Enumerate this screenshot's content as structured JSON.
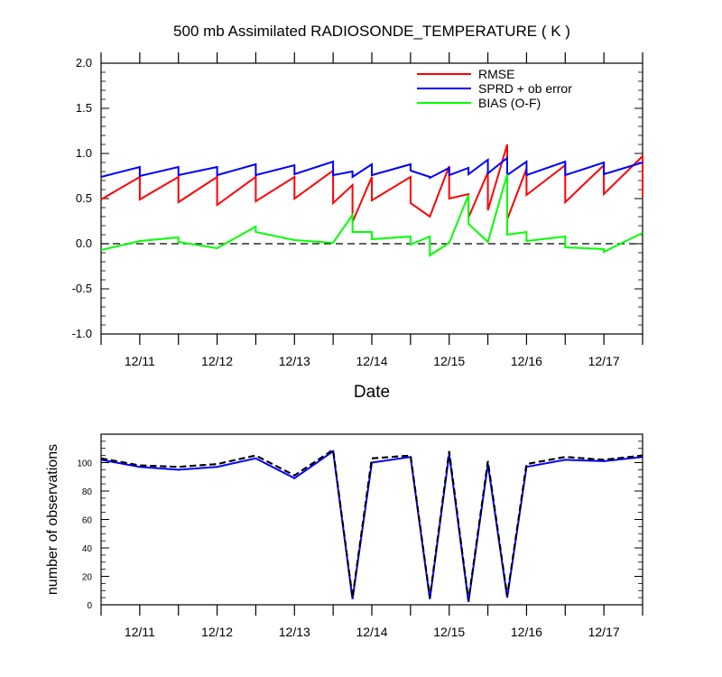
{
  "colors": {
    "rmse": "#ff0000",
    "sprd": "#0000ff",
    "bias": "#00ff00",
    "zero_line": "#000000",
    "obs_dashed": "#000000",
    "obs_solid": "#0000ff"
  },
  "chart_data": [
    {
      "type": "line",
      "title": "500 mb Assimilated RADIOSONDE_TEMPERATURE ( K )",
      "xlabel": "Date",
      "ylabel": "",
      "xlim": [
        10.5,
        17.5
      ],
      "ylim": [
        -1.0,
        2.0
      ],
      "yticks": [
        -1.0,
        -0.5,
        0.0,
        0.5,
        1.0,
        1.5,
        2.0
      ],
      "ytick_labels": [
        "-1.0",
        "-0.5",
        "0.0",
        "0.5",
        "1.0",
        "1.5",
        "2.0"
      ],
      "xticks": [
        11,
        12,
        13,
        14,
        15,
        16,
        17
      ],
      "xtick_labels": [
        "12/11",
        "12/12",
        "12/13",
        "12/14",
        "12/15",
        "12/16",
        "12/17"
      ],
      "zero_line": "dashed",
      "grid": false,
      "legend_position": "top-right",
      "series": [
        {
          "name": "RMSE",
          "color_key": "rmse",
          "points": [
            [
              10.5,
              0.49
            ],
            [
              11.0,
              0.74
            ],
            [
              11.0,
              0.49
            ],
            [
              11.5,
              0.74
            ],
            [
              11.5,
              0.46
            ],
            [
              12.0,
              0.74
            ],
            [
              12.0,
              0.43
            ],
            [
              12.5,
              0.74
            ],
            [
              12.5,
              0.47
            ],
            [
              13.0,
              0.74
            ],
            [
              13.0,
              0.5
            ],
            [
              13.5,
              0.81
            ],
            [
              13.5,
              0.45
            ],
            [
              13.75,
              0.65
            ],
            [
              13.75,
              0.24
            ],
            [
              14.0,
              0.74
            ],
            [
              14.0,
              0.48
            ],
            [
              14.5,
              0.74
            ],
            [
              14.5,
              0.45
            ],
            [
              14.75,
              0.3
            ],
            [
              14.75,
              0.3
            ],
            [
              15.0,
              0.86
            ],
            [
              15.0,
              0.5
            ],
            [
              15.25,
              0.55
            ],
            [
              15.25,
              0.29
            ],
            [
              15.5,
              0.79
            ],
            [
              15.5,
              0.37
            ],
            [
              15.75,
              1.1
            ],
            [
              15.75,
              0.27
            ],
            [
              16.0,
              0.83
            ],
            [
              16.0,
              0.54
            ],
            [
              16.5,
              0.87
            ],
            [
              16.5,
              0.46
            ],
            [
              17.0,
              0.87
            ],
            [
              17.0,
              0.55
            ],
            [
              17.5,
              0.97
            ],
            [
              17.5,
              0.52
            ]
          ]
        },
        {
          "name": "SPRD + ob error",
          "color_key": "sprd",
          "points": [
            [
              10.5,
              0.74
            ],
            [
              11.0,
              0.85
            ],
            [
              11.0,
              0.75
            ],
            [
              11.5,
              0.85
            ],
            [
              11.5,
              0.76
            ],
            [
              12.0,
              0.85
            ],
            [
              12.0,
              0.76
            ],
            [
              12.5,
              0.88
            ],
            [
              12.5,
              0.76
            ],
            [
              13.0,
              0.87
            ],
            [
              13.0,
              0.77
            ],
            [
              13.5,
              0.91
            ],
            [
              13.5,
              0.76
            ],
            [
              13.75,
              0.8
            ],
            [
              13.75,
              0.74
            ],
            [
              14.0,
              0.88
            ],
            [
              14.0,
              0.76
            ],
            [
              14.5,
              0.88
            ],
            [
              14.5,
              0.81
            ],
            [
              14.75,
              0.74
            ],
            [
              14.75,
              0.73
            ],
            [
              15.0,
              0.84
            ],
            [
              15.0,
              0.76
            ],
            [
              15.25,
              0.84
            ],
            [
              15.25,
              0.77
            ],
            [
              15.5,
              0.93
            ],
            [
              15.5,
              0.78
            ],
            [
              15.75,
              0.95
            ],
            [
              15.75,
              0.76
            ],
            [
              16.0,
              0.91
            ],
            [
              16.0,
              0.76
            ],
            [
              16.5,
              0.91
            ],
            [
              16.5,
              0.76
            ],
            [
              17.0,
              0.9
            ],
            [
              17.0,
              0.77
            ],
            [
              17.5,
              0.9
            ],
            [
              17.5,
              0.89
            ]
          ]
        },
        {
          "name": "BIAS (O-F)",
          "color_key": "bias",
          "points": [
            [
              10.5,
              -0.07
            ],
            [
              11.0,
              0.03
            ],
            [
              11.0,
              0.03
            ],
            [
              11.5,
              0.07
            ],
            [
              11.5,
              0.02
            ],
            [
              12.0,
              -0.05
            ],
            [
              12.0,
              -0.05
            ],
            [
              12.5,
              0.19
            ],
            [
              12.5,
              0.13
            ],
            [
              13.0,
              0.04
            ],
            [
              13.0,
              0.04
            ],
            [
              13.5,
              0.01
            ],
            [
              13.5,
              0.01
            ],
            [
              13.75,
              0.32
            ],
            [
              13.75,
              0.13
            ],
            [
              14.0,
              0.13
            ],
            [
              14.0,
              0.05
            ],
            [
              14.5,
              0.08
            ],
            [
              14.5,
              -0.01
            ],
            [
              14.75,
              0.08
            ],
            [
              14.75,
              -0.13
            ],
            [
              15.0,
              0.01
            ],
            [
              15.0,
              0.01
            ],
            [
              15.25,
              0.54
            ],
            [
              15.25,
              0.22
            ],
            [
              15.5,
              0.02
            ],
            [
              15.5,
              0.02
            ],
            [
              15.75,
              0.77
            ],
            [
              15.75,
              0.1
            ],
            [
              16.0,
              0.13
            ],
            [
              16.0,
              0.03
            ],
            [
              16.5,
              0.08
            ],
            [
              16.5,
              -0.04
            ],
            [
              17.0,
              -0.06
            ],
            [
              17.0,
              -0.09
            ],
            [
              17.5,
              0.12
            ]
          ]
        }
      ]
    },
    {
      "type": "line",
      "title": "",
      "xlabel": "",
      "ylabel": "number of observations",
      "xlim": [
        10.5,
        17.5
      ],
      "ylim": [
        0,
        120
      ],
      "yticks": [
        0,
        20,
        40,
        60,
        80,
        100
      ],
      "ytick_labels": [
        "0",
        "20",
        "40",
        "60",
        "80",
        "100"
      ],
      "xticks": [
        11,
        12,
        13,
        14,
        15,
        16,
        17
      ],
      "xtick_labels": [
        "12/11",
        "12/12",
        "12/13",
        "12/14",
        "12/15",
        "12/16",
        "12/17"
      ],
      "grid": false,
      "series": [
        {
          "style": "dashed",
          "color_key": "obs_dashed",
          "points": [
            [
              10.5,
              103
            ],
            [
              11.0,
              98
            ],
            [
              11.5,
              97
            ],
            [
              12.0,
              99
            ],
            [
              12.5,
              105
            ],
            [
              13.0,
              91
            ],
            [
              13.5,
              109
            ],
            [
              13.75,
              5
            ],
            [
              14.0,
              103
            ],
            [
              14.5,
              105
            ],
            [
              14.75,
              5
            ],
            [
              15.0,
              108
            ],
            [
              15.25,
              3
            ],
            [
              15.5,
              101
            ],
            [
              15.75,
              6
            ],
            [
              16.0,
              99
            ],
            [
              16.5,
              104
            ],
            [
              17.0,
              102
            ],
            [
              17.5,
              105
            ]
          ]
        },
        {
          "style": "solid",
          "color_key": "obs_solid",
          "points": [
            [
              10.5,
              102
            ],
            [
              11.0,
              97
            ],
            [
              11.5,
              95
            ],
            [
              12.0,
              97
            ],
            [
              12.5,
              103
            ],
            [
              13.0,
              89
            ],
            [
              13.5,
              108
            ],
            [
              13.75,
              4
            ],
            [
              14.0,
              100
            ],
            [
              14.5,
              104
            ],
            [
              14.75,
              4
            ],
            [
              15.0,
              106
            ],
            [
              15.25,
              2
            ],
            [
              15.5,
              99
            ],
            [
              15.75,
              5
            ],
            [
              16.0,
              97
            ],
            [
              16.5,
              102
            ],
            [
              17.0,
              101
            ],
            [
              17.5,
              104
            ]
          ]
        }
      ]
    }
  ]
}
